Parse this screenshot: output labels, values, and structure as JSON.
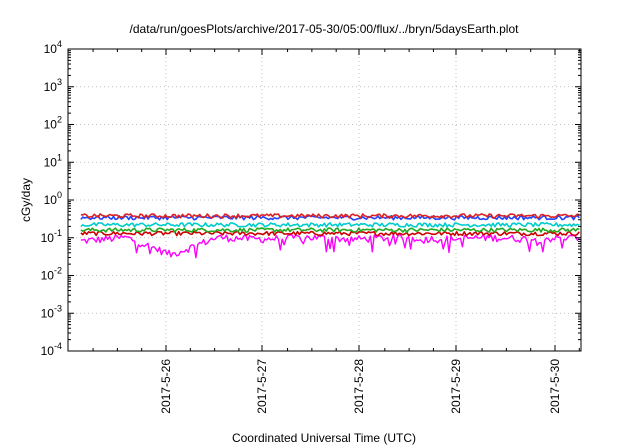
{
  "chart_data": {
    "type": "line",
    "title": "/data/run/goesPlots/archive/2017-05-30/05:00/flux/../bryn/5daysEarth.plot",
    "xlabel": "Coordinated Universal Time (UTC)",
    "ylabel": "cGy/day",
    "yscale": "log",
    "ylim": [
      0.0001,
      10000
    ],
    "x_tick_labels": [
      "2017-5-26",
      "2017-5-27",
      "2017-5-28",
      "2017-5-29",
      "2017-5-30"
    ],
    "y_tick_labels": [
      {
        "base": "10",
        "exp": "-4"
      },
      {
        "base": "10",
        "exp": "-3"
      },
      {
        "base": "10",
        "exp": "-2"
      },
      {
        "base": "10",
        "exp": "-1"
      },
      {
        "base": "10",
        "exp": "0"
      },
      {
        "base": "10",
        "exp": "1"
      },
      {
        "base": "10",
        "exp": "2"
      },
      {
        "base": "10",
        "exp": "3"
      },
      {
        "base": "10",
        "exp": "4"
      }
    ],
    "grid": true,
    "legend": "none",
    "series": [
      {
        "color": "#ff00ff",
        "x": [
          "2017-05-25 03:00",
          "2017-05-25 15:00",
          "2017-05-26 00:00",
          "2017-05-26 12:00",
          "2017-05-27 00:00",
          "2017-05-27 12:00",
          "2017-05-28 00:00",
          "2017-05-28 12:00",
          "2017-05-29 00:00",
          "2017-05-29 12:00",
          "2017-05-30 00:00",
          "2017-05-30 06:00"
        ],
        "values": [
          0.08,
          0.1,
          0.035,
          0.1,
          0.09,
          0.1,
          0.09,
          0.1,
          0.09,
          0.1,
          0.09,
          0.1
        ]
      },
      {
        "color": "#cc0000",
        "x": [
          "2017-05-25 03:00",
          "2017-05-30 06:00"
        ],
        "values": [
          0.13,
          0.13
        ]
      },
      {
        "color": "#22aa22",
        "x": [
          "2017-05-25 03:00",
          "2017-05-30 06:00"
        ],
        "values": [
          0.16,
          0.16
        ]
      },
      {
        "color": "#00cccc",
        "x": [
          "2017-05-25 03:00",
          "2017-05-30 06:00"
        ],
        "values": [
          0.22,
          0.22
        ]
      },
      {
        "color": "#dd2222",
        "x": [
          "2017-05-25 03:00",
          "2017-05-30 06:00"
        ],
        "values": [
          0.38,
          0.38
        ]
      },
      {
        "color": "#2244ff",
        "x": [
          "2017-05-25 03:00",
          "2017-05-30 06:00"
        ],
        "values": [
          0.34,
          0.34
        ]
      }
    ]
  }
}
